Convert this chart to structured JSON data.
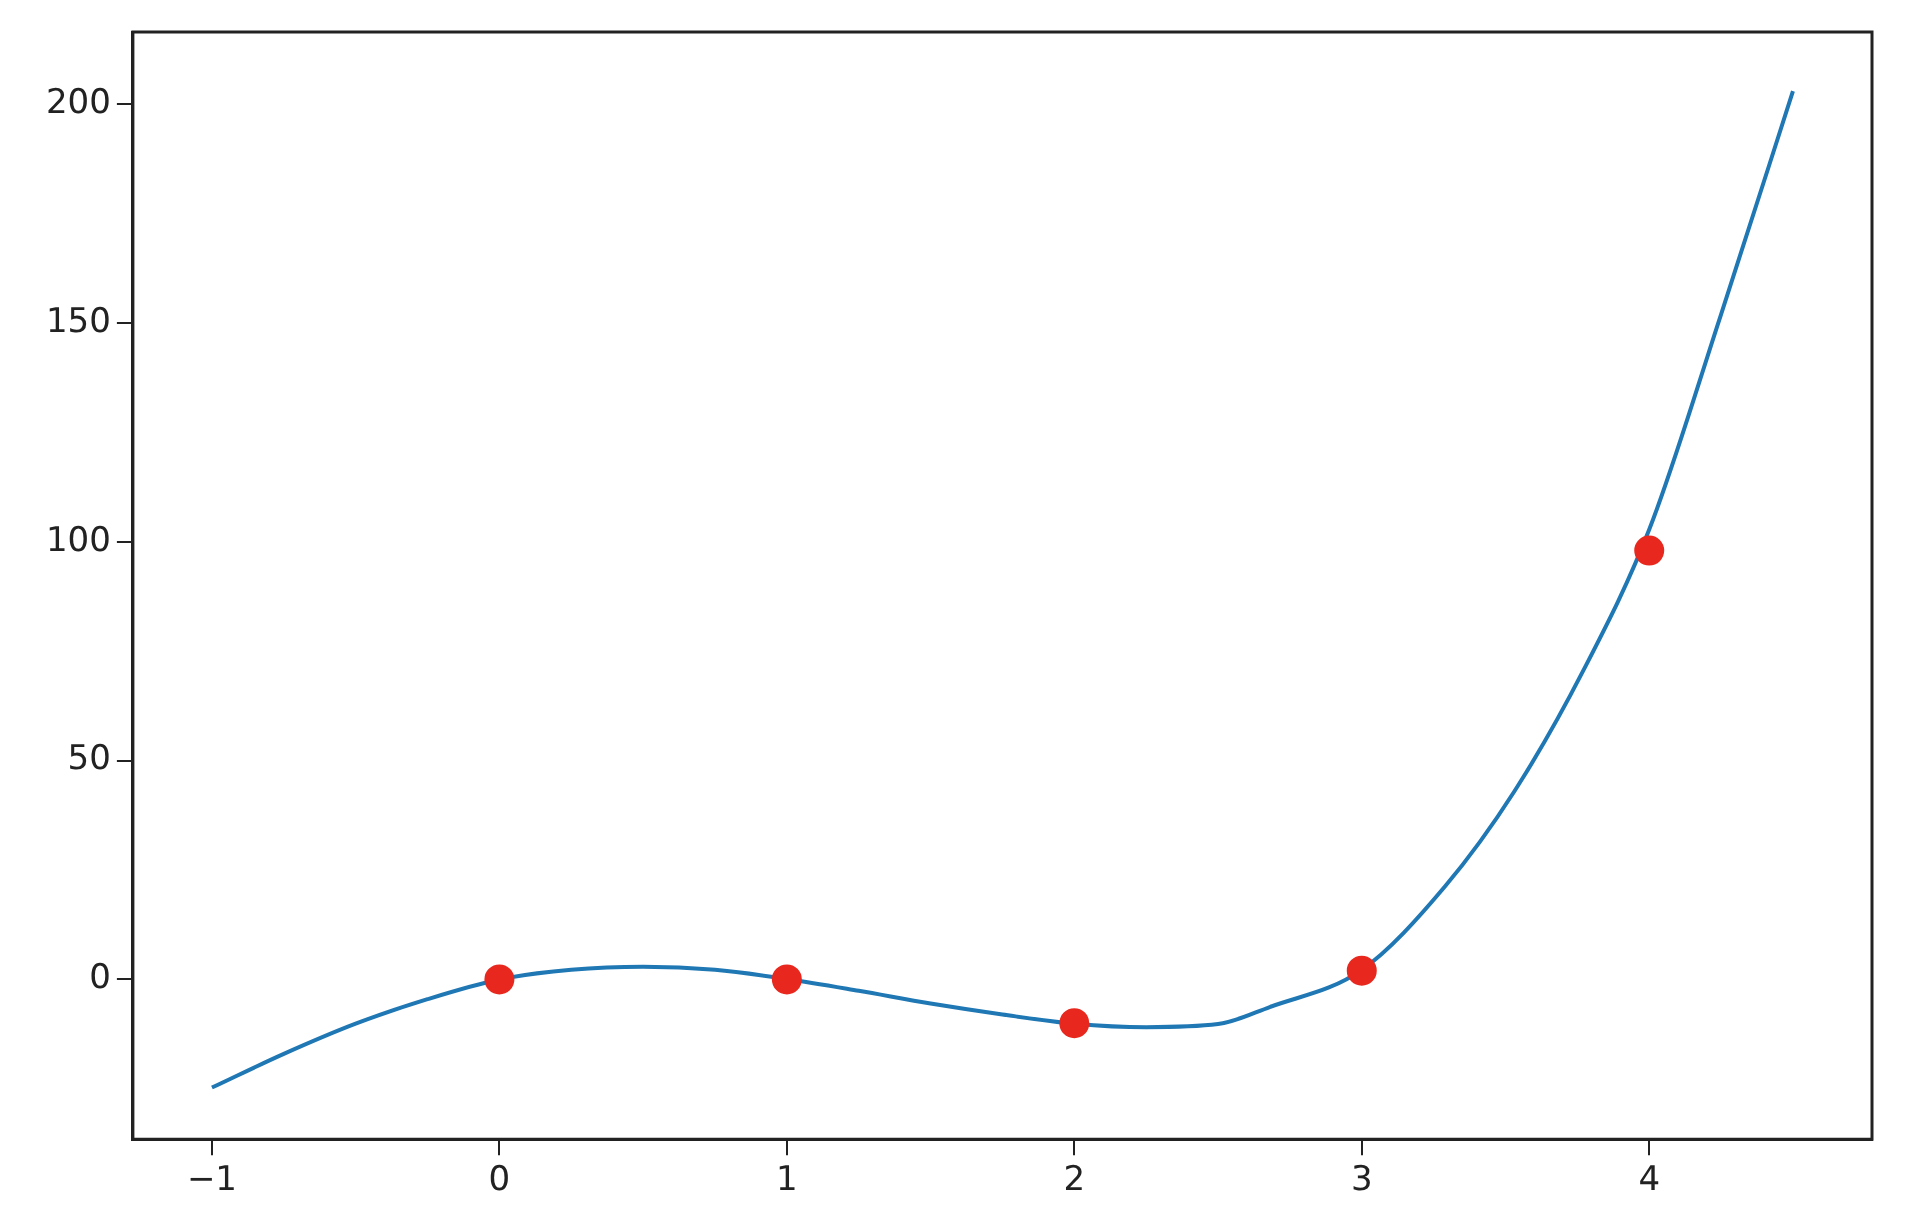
{
  "chart_data": {
    "type": "scatter",
    "xlim": [
      -1.275,
      4.775
    ],
    "xticks": [
      {
        "value": -1,
        "label": "−1"
      },
      0,
      1,
      2,
      3,
      4
    ],
    "ylim": [
      -36.5,
      216.5
    ],
    "yticks": [
      0,
      50,
      100,
      150,
      200
    ],
    "grid": false,
    "legend": false,
    "series": [
      {
        "type": "line",
        "color": "#1f77b4",
        "marker": "none",
        "x": [
          -1,
          -0.75,
          -0.5,
          -0.25,
          0,
          0.25,
          0.5,
          0.75,
          1,
          1.25,
          1.5,
          1.75,
          2,
          2.25,
          2.5,
          2.68,
          3,
          3.29,
          3.53,
          3.77,
          4,
          4.25,
          4.5
        ],
        "values": [
          -24.7,
          -17,
          -10.1,
          -4.5,
          0,
          2.2,
          2.9,
          2.2,
          0.1,
          -2.6,
          -5.5,
          -8,
          -10.1,
          -10.9,
          -10.2,
          -6.3,
          2.2,
          21.3,
          42.9,
          70.5,
          102.8,
          152,
          203
        ]
      },
      {
        "color": "#e8281e",
        "marker": "circle",
        "x": [
          0,
          1,
          2,
          3,
          4
        ],
        "values": [
          0,
          0,
          -10,
          2,
          98
        ]
      }
    ]
  }
}
